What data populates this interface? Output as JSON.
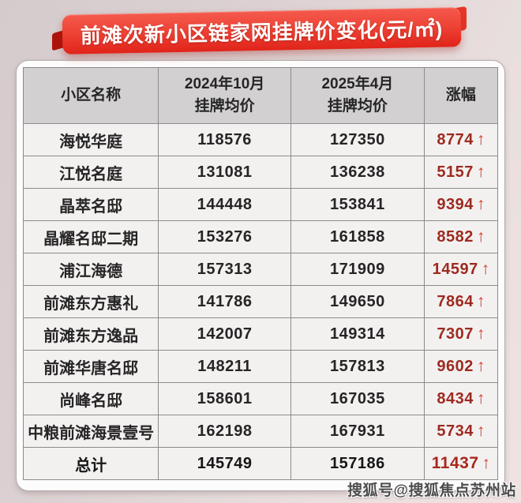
{
  "title": "前滩次新小区链家网挂牌价变化(元/㎡)",
  "watermark": "搜狐号@搜狐焦点苏州站",
  "table": {
    "header": {
      "name": "小区名称",
      "col2_line1": "2024年10月",
      "col2_line2": "挂牌均价",
      "col3_line1": "2025年4月",
      "col3_line2": "挂牌均价",
      "change": "涨幅"
    },
    "rows": [
      {
        "name": "海悦华庭",
        "oct_2024": "118576",
        "apr_2025": "127350",
        "change": "8774",
        "arrow": "↑"
      },
      {
        "name": "江悦名庭",
        "oct_2024": "131081",
        "apr_2025": "136238",
        "change": "5157",
        "arrow": "↑"
      },
      {
        "name": "晶萃名邸",
        "oct_2024": "144448",
        "apr_2025": "153841",
        "change": "9394",
        "arrow": "↑"
      },
      {
        "name": "晶耀名邸二期",
        "oct_2024": "153276",
        "apr_2025": "161858",
        "change": "8582",
        "arrow": "↑"
      },
      {
        "name": "浦江海德",
        "oct_2024": "157313",
        "apr_2025": "171909",
        "change": "14597",
        "arrow": "↑"
      },
      {
        "name": "前滩东方惠礼",
        "oct_2024": "141786",
        "apr_2025": "149650",
        "change": "7864",
        "arrow": "↑"
      },
      {
        "name": "前滩东方逸品",
        "oct_2024": "142007",
        "apr_2025": "149314",
        "change": "7307",
        "arrow": "↑"
      },
      {
        "name": "前滩华唐名邸",
        "oct_2024": "148211",
        "apr_2025": "157813",
        "change": "9602",
        "arrow": "↑"
      },
      {
        "name": "尚峰名邸",
        "oct_2024": "158601",
        "apr_2025": "167035",
        "change": "8434",
        "arrow": "↑"
      },
      {
        "name": "中粮前滩海景壹号",
        "oct_2024": "162198",
        "apr_2025": "167931",
        "change": "5734",
        "arrow": "↑"
      }
    ],
    "total": {
      "name": "总计",
      "oct_2024": "145749",
      "apr_2025": "157186",
      "change": "11437",
      "arrow": "↑"
    }
  },
  "colors": {
    "banner_red": "#e8271c",
    "banner_red_light": "#f45a4d",
    "ribbon_fold_dark": "#ae140c",
    "header_bg": "#d2d0d0",
    "total_bg": "#d6d4d4",
    "cell_bg": "#f3f1f0",
    "grid_border": "#8d8a8a",
    "change_text": "#9e2a20",
    "arrow_red": "#bb3426",
    "card_bg": "#fdfcfc",
    "page_bg_from": "#d5cbcd",
    "page_bg_to": "#efe3e2",
    "watermark_text": "#4c4c4c"
  },
  "chart_data": {
    "type": "table",
    "title": "前滩次新小区链家网挂牌价变化(元/㎡)",
    "unit": "元/㎡",
    "columns": [
      "小区名称",
      "2024年10月挂牌均价",
      "2025年4月挂牌均价",
      "涨幅"
    ],
    "rows": [
      [
        "海悦华庭",
        118576,
        127350,
        8774
      ],
      [
        "江悦名庭",
        131081,
        136238,
        5157
      ],
      [
        "晶萃名邸",
        144448,
        153841,
        9394
      ],
      [
        "晶耀名邸二期",
        153276,
        161858,
        8582
      ],
      [
        "浦江海德",
        157313,
        171909,
        14597
      ],
      [
        "前滩东方惠礼",
        141786,
        149650,
        7864
      ],
      [
        "前滩东方逸品",
        142007,
        149314,
        7307
      ],
      [
        "前滩华唐名邸",
        148211,
        157813,
        9602
      ],
      [
        "尚峰名邸",
        158601,
        167035,
        8434
      ],
      [
        "中粮前滩海景壹号",
        162198,
        167931,
        5734
      ]
    ],
    "total_row": [
      "总计",
      145749,
      157186,
      11437
    ],
    "all_changes_direction": "up"
  }
}
